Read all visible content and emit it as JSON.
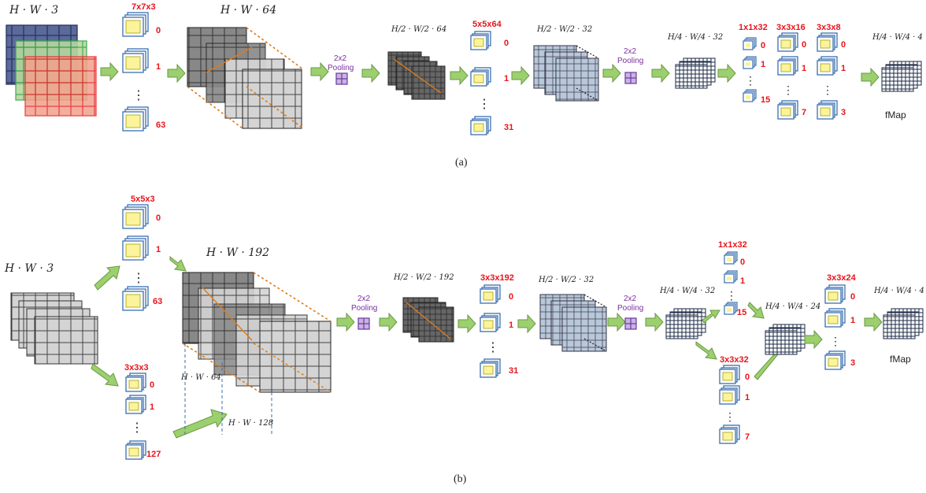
{
  "panel_a": {
    "caption": "(a)",
    "input_label": "H · W · 3",
    "kernel1": {
      "label": "7x7x3",
      "idx_top": "0",
      "idx_mid": "1",
      "idx_last": "63"
    },
    "fmap1_label": "H · W · 64",
    "pool1": {
      "line1": "2x2",
      "line2": "Pooling"
    },
    "fmap2_label": "H/2 · W/2 · 64",
    "kernel2": {
      "label": "5x5x64",
      "idx_top": "0",
      "idx_mid": "1",
      "idx_last": "31"
    },
    "fmap3_label": "H/2 · W/2 · 32",
    "pool2": {
      "line1": "2x2",
      "line2": "Pooling"
    },
    "fmap4_label": "H/4 · W/4 · 32",
    "kernel3": {
      "label": "1x1x32",
      "idx_top": "0",
      "idx_mid": "1",
      "idx_last": "15"
    },
    "kernel4": {
      "label": "3x3x16",
      "idx_top": "0",
      "idx_mid": "1",
      "idx_last": "7"
    },
    "kernel5": {
      "label": "3x3x8",
      "idx_top": "0",
      "idx_mid": "1",
      "idx_last": "3"
    },
    "output_label": "H/4 · W/4 · 4",
    "fmap_text": "fMap"
  },
  "panel_b": {
    "caption": "(b)",
    "input_label": "H · W · 3",
    "kernel1": {
      "label": "5x5x3",
      "idx_top": "0",
      "idx_mid": "1",
      "idx_last": "63"
    },
    "kernel2": {
      "label": "3x3x3",
      "idx_top": "0",
      "idx_mid": "1",
      "idx_last": "127"
    },
    "fmap1_label": "H · W · 192",
    "split_label_a": "H · W · 64",
    "split_label_b": "H · W · 128",
    "pool1": {
      "line1": "2x2",
      "line2": "Pooling"
    },
    "fmap2_label": "H/2 · W/2 · 192",
    "kernel3": {
      "label": "3x3x192",
      "idx_top": "0",
      "idx_mid": "1",
      "idx_last": "31"
    },
    "fmap3_label": "H/2 · W/2 · 32",
    "pool2": {
      "line1": "2x2",
      "line2": "Pooling"
    },
    "fmap4_label": "H/4 · W/4 · 32",
    "kernel4": {
      "label": "1x1x32",
      "idx_top": "0",
      "idx_mid": "1",
      "idx_last": "15"
    },
    "kernel5": {
      "label": "3x3x32",
      "idx_top": "0",
      "idx_mid": "1",
      "idx_last": "7"
    },
    "fmap5_label": "H/4 · W/4 · 24",
    "kernel6": {
      "label": "3x3x24",
      "idx_top": "0",
      "idx_mid": "1",
      "idx_last": "3"
    },
    "output_label": "H/4 · W/4 · 4",
    "fmap_text": "fMap"
  },
  "colors": {
    "arrow_fill": "#9ccf6e",
    "arrow_stroke": "#6a9a45",
    "kernel_fill": "#fbf49a",
    "kernel_stroke": "#3a6fb0",
    "index_red": "#e8141c",
    "pool_purple": "#7a2fa0",
    "dashed_orange": "#e07b1a"
  }
}
